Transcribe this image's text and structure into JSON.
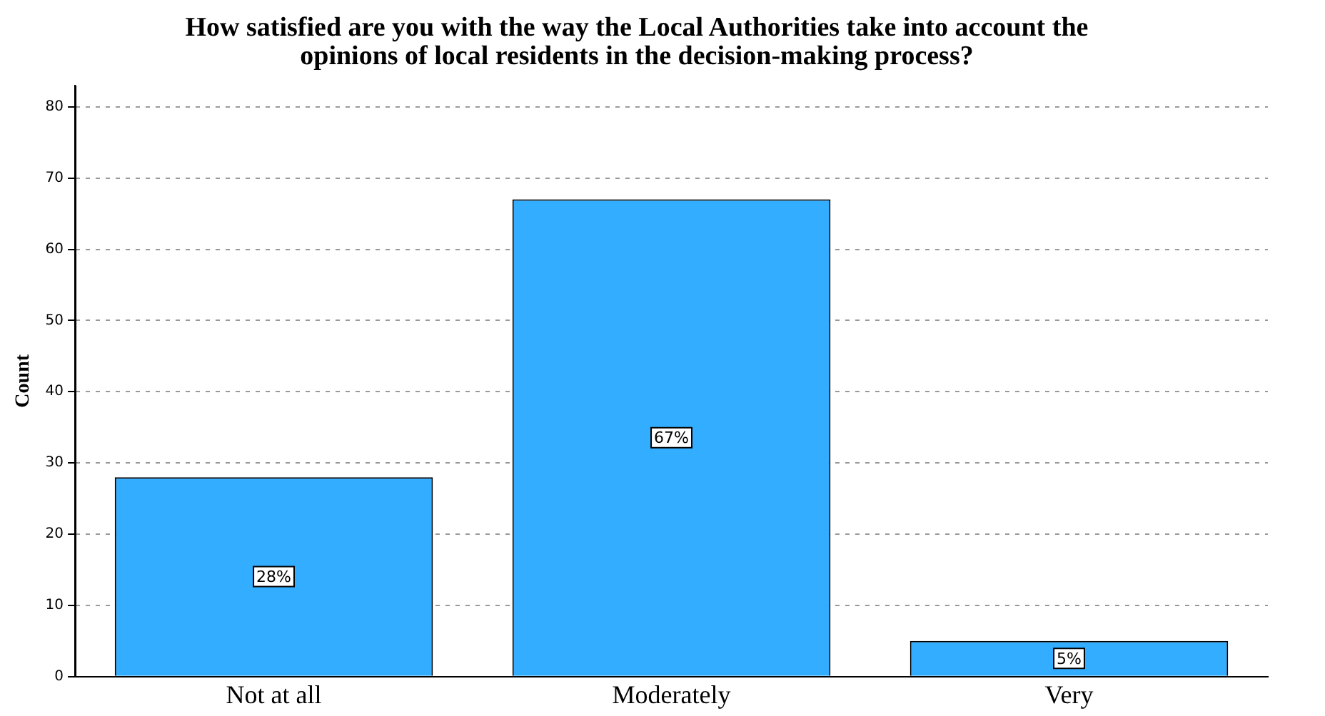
{
  "chart_data": {
    "type": "bar",
    "title": [
      "How satisfied are you with the way the Local Authorities take into account the",
      "opinions of local residents in the decision-making process?"
    ],
    "ylabel": "Count",
    "categories": [
      "Not at all",
      "Moderately",
      "Very"
    ],
    "values": [
      28,
      67,
      5
    ],
    "value_labels": [
      "28%",
      "67%",
      "5%"
    ],
    "color": "#33adff",
    "ylim": [
      0,
      83
    ],
    "yticks": [
      0,
      10,
      20,
      30,
      40,
      50,
      60,
      70,
      80
    ],
    "grid": "y"
  }
}
